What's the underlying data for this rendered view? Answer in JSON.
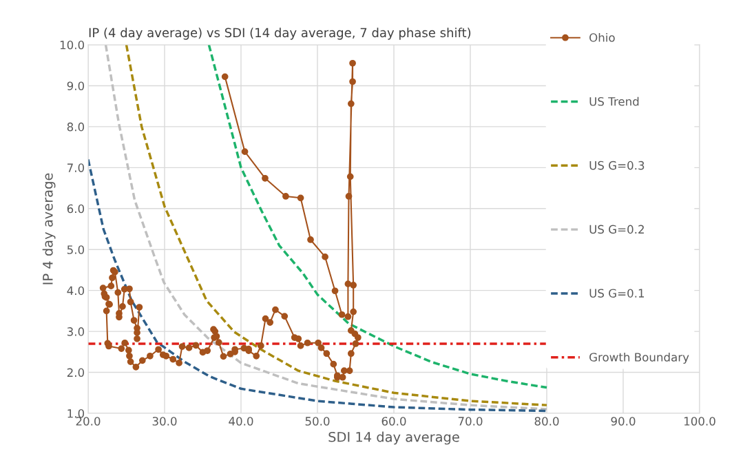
{
  "chart_data": {
    "type": "line",
    "title": "IP (4 day average) vs SDI (14 day average, 7 day phase shift)",
    "xlabel": "SDI 14 day average",
    "ylabel": "IP 4 day average",
    "xlim": [
      20,
      100
    ],
    "ylim": [
      1,
      10
    ],
    "xticks": [
      {
        "value": 20,
        "label": "20.0"
      },
      {
        "value": 30,
        "label": "30.0"
      },
      {
        "value": 40,
        "label": "40.0"
      },
      {
        "value": 50,
        "label": "50.0"
      },
      {
        "value": 60,
        "label": "60.0"
      },
      {
        "value": 70,
        "label": "70.0"
      },
      {
        "value": 80,
        "label": "80.0"
      },
      {
        "value": 90,
        "label": "90.0"
      },
      {
        "value": 100,
        "label": "100.0"
      }
    ],
    "yticks": [
      {
        "value": 1,
        "label": "1.0"
      },
      {
        "value": 2,
        "label": "2.0"
      },
      {
        "value": 3,
        "label": "3.0"
      },
      {
        "value": 4,
        "label": "4.0"
      },
      {
        "value": 5,
        "label": "5.0"
      },
      {
        "value": 6,
        "label": "6.0"
      },
      {
        "value": 7,
        "label": "7.0"
      },
      {
        "value": 8,
        "label": "8.0"
      },
      {
        "value": 9,
        "label": "9.0"
      },
      {
        "value": 10,
        "label": "10.0"
      }
    ],
    "grid": true,
    "legend": "right",
    "series": [
      {
        "name": "Ohio",
        "color": "#a5521c",
        "marker": "circle",
        "line_style": "solid",
        "x": [
          37.9,
          40.5,
          43.15,
          45.85,
          47.8,
          49.1,
          51.0,
          52.3,
          53.2,
          54.0,
          54.0,
          54.1,
          54.6,
          54.6,
          54.4,
          54.3,
          54.7,
          54.7,
          54.4,
          54.9,
          55.3,
          55.0,
          54.4,
          54.2,
          53.5,
          53.3,
          52.6,
          52.6,
          52.1,
          51.2,
          50.5,
          50.1,
          48.7,
          47.8,
          47.5,
          47.0,
          45.7,
          44.5,
          43.8,
          43.2,
          42.6,
          42.0,
          41.0,
          41.0,
          40.4,
          39.2,
          39.2,
          38.6,
          37.7,
          37.1,
          36.8,
          36.4,
          36.6,
          36.5,
          35.6,
          35.0,
          34.1,
          33.2,
          32.3,
          31.9,
          31.1,
          30.2,
          29.8,
          29.2,
          28.1,
          27.1,
          26.25,
          25.55,
          25.4,
          25.3,
          24.8,
          24.35,
          22.7,
          22.55,
          22.4,
          22.7,
          22.8,
          22.4,
          22.2,
          22.1,
          21.95,
          23.0,
          23.15,
          23.3,
          23.5,
          23.9,
          24.05,
          24.05,
          24.5,
          24.75,
          25.4,
          25.55,
          26.0,
          26.4,
          26.4,
          26.4,
          26.7
        ],
        "values": [
          9.22,
          7.39,
          6.74,
          6.3,
          6.26,
          5.24,
          4.82,
          3.99,
          3.41,
          3.36,
          4.16,
          6.3,
          9.55,
          9.1,
          8.56,
          6.78,
          4.13,
          3.48,
          3.02,
          2.94,
          2.85,
          2.7,
          2.46,
          2.04,
          2.04,
          1.88,
          1.88,
          1.92,
          2.2,
          2.46,
          2.6,
          2.72,
          2.72,
          2.65,
          2.82,
          2.85,
          3.37,
          3.53,
          3.22,
          3.31,
          2.65,
          2.4,
          2.53,
          2.57,
          2.59,
          2.56,
          2.5,
          2.45,
          2.39,
          2.73,
          2.88,
          3.05,
          3.0,
          2.85,
          2.53,
          2.49,
          2.66,
          2.6,
          2.63,
          2.23,
          2.32,
          2.4,
          2.43,
          2.56,
          2.4,
          2.29,
          2.13,
          2.26,
          2.4,
          2.54,
          2.72,
          2.58,
          2.64,
          2.71,
          3.5,
          3.67,
          3.66,
          3.83,
          3.85,
          3.92,
          4.06,
          4.11,
          4.31,
          4.49,
          4.45,
          3.95,
          3.44,
          3.35,
          3.61,
          4.03,
          4.04,
          3.72,
          3.27,
          3.08,
          2.97,
          2.82,
          3.59
        ]
      },
      {
        "name": "US Trend",
        "color": "#1db36b",
        "marker": "none",
        "line_style": "dashed",
        "x": [
          35.8,
          40.0,
          42.7,
          45.0,
          48.1,
          50.0,
          54.1,
          60.1,
          65.0,
          70.0,
          75.0,
          80.0
        ],
        "values": [
          10.0,
          7.0,
          5.94,
          5.1,
          4.42,
          3.9,
          3.19,
          2.63,
          2.25,
          1.96,
          1.78,
          1.63
        ]
      },
      {
        "name": "US G=0.3",
        "color": "#a88a10",
        "marker": "none",
        "line_style": "dashed",
        "x": [
          25.0,
          27.0,
          30.0,
          35.5,
          39.1,
          42.7,
          47.5,
          52.3,
          60.0,
          70.0,
          80.0
        ],
        "values": [
          10.0,
          8.0,
          6.05,
          3.75,
          2.99,
          2.55,
          2.04,
          1.79,
          1.5,
          1.3,
          1.2
        ]
      },
      {
        "name": "US G=0.2",
        "color": "#bfbfbf",
        "marker": "none",
        "line_style": "dashed",
        "x": [
          22.3,
          24.0,
          26.1,
          28.6,
          29.9,
          32.6,
          35.6,
          40.0,
          47.5,
          60.0,
          70.0,
          80.0
        ],
        "values": [
          10.0,
          8.1,
          6.2,
          4.87,
          4.2,
          3.41,
          2.85,
          2.23,
          1.73,
          1.35,
          1.2,
          1.1
        ]
      },
      {
        "name": "US G=0.1",
        "color": "#2e5f8a",
        "marker": "none",
        "line_style": "dashed",
        "x": [
          20.0,
          22.0,
          23.45,
          25.7,
          29.0,
          32.6,
          35.9,
          40.0,
          50.0,
          60.0,
          70.0,
          80.0
        ],
        "values": [
          7.2,
          5.5,
          4.76,
          3.75,
          2.74,
          2.26,
          1.9,
          1.6,
          1.3,
          1.15,
          1.09,
          1.06
        ]
      },
      {
        "name": "Growth Boundary",
        "color": "#e0201b",
        "marker": "none",
        "line_style": "dashdot",
        "x": [
          20.0,
          80.0
        ],
        "values": [
          2.7,
          2.7
        ]
      }
    ]
  }
}
